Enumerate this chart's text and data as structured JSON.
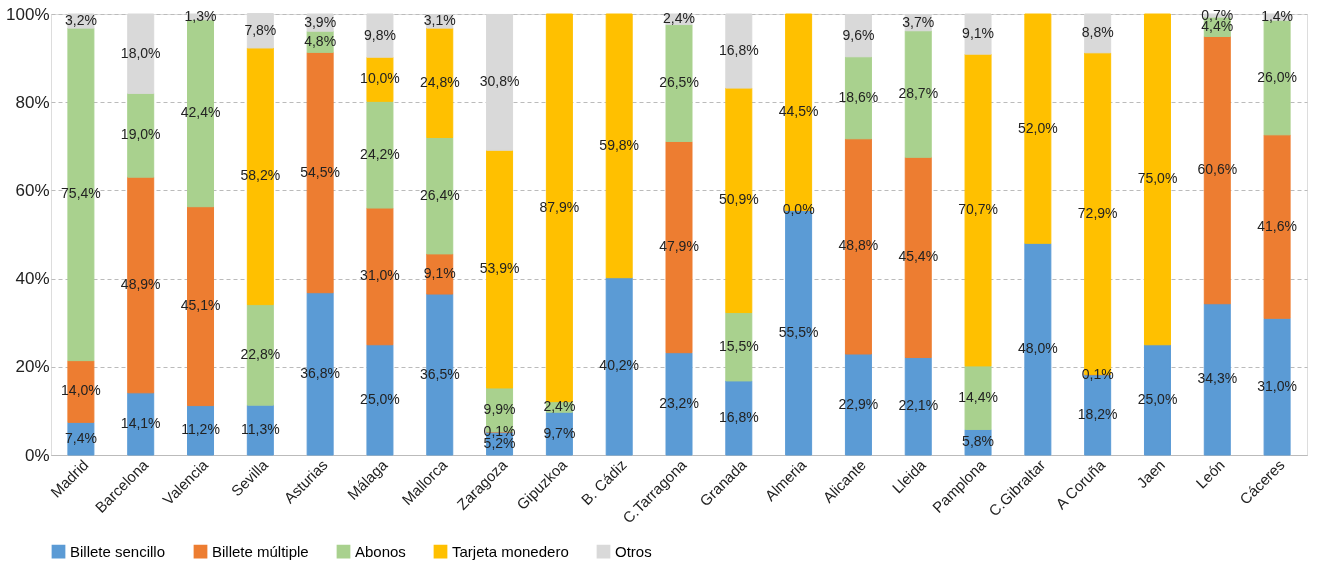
{
  "chart_data": {
    "type": "bar",
    "stacked": true,
    "categories": [
      "Madrid",
      "Barcelona",
      "Valencia",
      "Sevilla",
      "Asturias",
      "Málaga",
      "Mallorca",
      "Zaragoza",
      "Gipuzkoa",
      "B. Cádiz",
      "C.Tarragona",
      "Granada",
      "Almeria",
      "Alicante",
      "Lleida",
      "Pamplona",
      "C.Gibraltar",
      "A Coruña",
      "Jaen",
      "León",
      "Cáceres"
    ],
    "ylim": [
      0,
      100
    ],
    "yticks": [
      {
        "value": 0,
        "label": "0%"
      },
      {
        "value": 20,
        "label": "20%"
      },
      {
        "value": 40,
        "label": "40%"
      },
      {
        "value": 60,
        "label": "60%"
      },
      {
        "value": 80,
        "label": "80%"
      },
      {
        "value": 100,
        "label": "100%"
      }
    ],
    "grid": "y",
    "legend": "bottom",
    "series": [
      {
        "name": "Billete sencillo",
        "color": "#5b9bd5",
        "values": [
          7.4,
          14.1,
          11.2,
          11.3,
          36.8,
          25.0,
          36.5,
          5.2,
          9.7,
          40.2,
          23.2,
          16.8,
          55.5,
          22.9,
          22.1,
          5.8,
          48.0,
          18.2,
          25.0,
          34.3,
          31.0
        ],
        "value_labels": [
          "7,4%",
          "14,1%",
          "11,2%",
          "11,3%",
          "36,8%",
          "25,0%",
          "36,5%",
          "5,2%",
          "9,7%",
          "40,2%",
          "23,2%",
          "16,8%",
          "55,5%",
          "22,9%",
          "22,1%",
          "5,8%",
          "48,0%",
          "18,2%",
          "25,0%",
          "34,3%",
          "31,0%"
        ]
      },
      {
        "name": "Billete múltiple",
        "color": "#ed7d31",
        "values": [
          14.0,
          48.9,
          45.1,
          null,
          54.5,
          31.0,
          9.1,
          0.1,
          null,
          null,
          47.9,
          null,
          0.0,
          48.8,
          45.4,
          null,
          null,
          0.1,
          null,
          60.6,
          41.6
        ],
        "value_labels": [
          "14,0%",
          "48,9%",
          "45,1%",
          null,
          "54,5%",
          "31,0%",
          "9,1%",
          "0,1%",
          null,
          null,
          "47,9%",
          null,
          "0,0%",
          "48,8%",
          "45,4%",
          null,
          null,
          "0,1%",
          null,
          "60,6%",
          "41,6%"
        ]
      },
      {
        "name": "Abonos",
        "color": "#a9d18e",
        "values": [
          75.4,
          19.0,
          42.4,
          22.8,
          4.8,
          24.2,
          26.4,
          9.9,
          2.4,
          null,
          26.5,
          15.5,
          null,
          18.6,
          28.7,
          14.4,
          null,
          null,
          null,
          4.4,
          26.0
        ],
        "value_labels": [
          "75,4%",
          "19,0%",
          "42,4%",
          "22,8%",
          "4,8%",
          "24,2%",
          "26,4%",
          "9,9%",
          "2,4%",
          null,
          "26,5%",
          "15,5%",
          null,
          "18,6%",
          "28,7%",
          "14,4%",
          null,
          null,
          null,
          "4,4%",
          "26,0%"
        ]
      },
      {
        "name": "Tarjeta monedero",
        "color": "#ffc000",
        "values": [
          null,
          null,
          null,
          58.2,
          null,
          10.0,
          24.8,
          53.9,
          87.9,
          59.8,
          null,
          50.9,
          44.5,
          null,
          null,
          70.7,
          52.0,
          72.9,
          75.0,
          null,
          null
        ],
        "value_labels": [
          null,
          null,
          null,
          "58,2%",
          null,
          "10,0%",
          "24,8%",
          "53,9%",
          "87,9%",
          "59,8%",
          null,
          "50,9%",
          "44,5%",
          null,
          null,
          "70,7%",
          "52,0%",
          "72,9%",
          "75,0%",
          null,
          null
        ]
      },
      {
        "name": "Otros",
        "color": "#d9d9d9",
        "values": [
          3.2,
          18.0,
          1.3,
          7.8,
          3.9,
          9.8,
          3.1,
          30.8,
          null,
          null,
          2.4,
          16.8,
          null,
          9.6,
          3.7,
          9.1,
          null,
          8.8,
          null,
          0.7,
          1.4
        ],
        "value_labels": [
          "3,2%",
          "18,0%",
          "1,3%",
          "7,8%",
          "3,9%",
          "9,8%",
          "3,1%",
          "30,8%",
          null,
          null,
          "2,4%",
          "16,8%",
          null,
          "9,6%",
          "3,7%",
          "9,1%",
          null,
          "8,8%",
          null,
          "0,7%",
          "1,4%"
        ]
      }
    ]
  }
}
